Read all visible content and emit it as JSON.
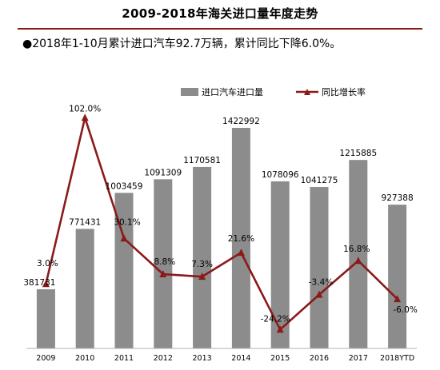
{
  "title": "2009-2018年海关进口量年度走势",
  "subtitle": "●2018年1-10月累计进口汽车92.7万辆，累计同比下降6.0%。",
  "chart_data": {
    "type": "bar",
    "categories": [
      "2009",
      "2010",
      "2011",
      "2012",
      "2013",
      "2014",
      "2015",
      "2016",
      "2017",
      "2018YTD"
    ],
    "series": [
      {
        "name": "进口汽车进口量",
        "type": "bar",
        "color": "#8c8c8c",
        "values": [
          381731,
          771431,
          1003459,
          1091309,
          1170581,
          1422992,
          1078096,
          1041275,
          1215885,
          927388
        ],
        "labels": [
          "381731",
          "771431",
          "1003459",
          "1091309",
          "1170581",
          "1422992",
          "1078096",
          "1041275",
          "1215885",
          "927388"
        ]
      },
      {
        "name": "同比增长率",
        "type": "line",
        "color": "#8b1a1a",
        "values": [
          3.0,
          102.0,
          30.1,
          8.8,
          7.3,
          21.6,
          -24.2,
          -3.4,
          16.8,
          -6.0
        ],
        "labels": [
          "3.0%",
          "102.0%",
          "30.1%",
          "8.8%",
          "7.3%",
          "21.6%",
          "-24.2%",
          "-3.4%",
          "16.8%",
          "-6.0%"
        ]
      }
    ],
    "legend_position": "top-right",
    "grid": false
  }
}
